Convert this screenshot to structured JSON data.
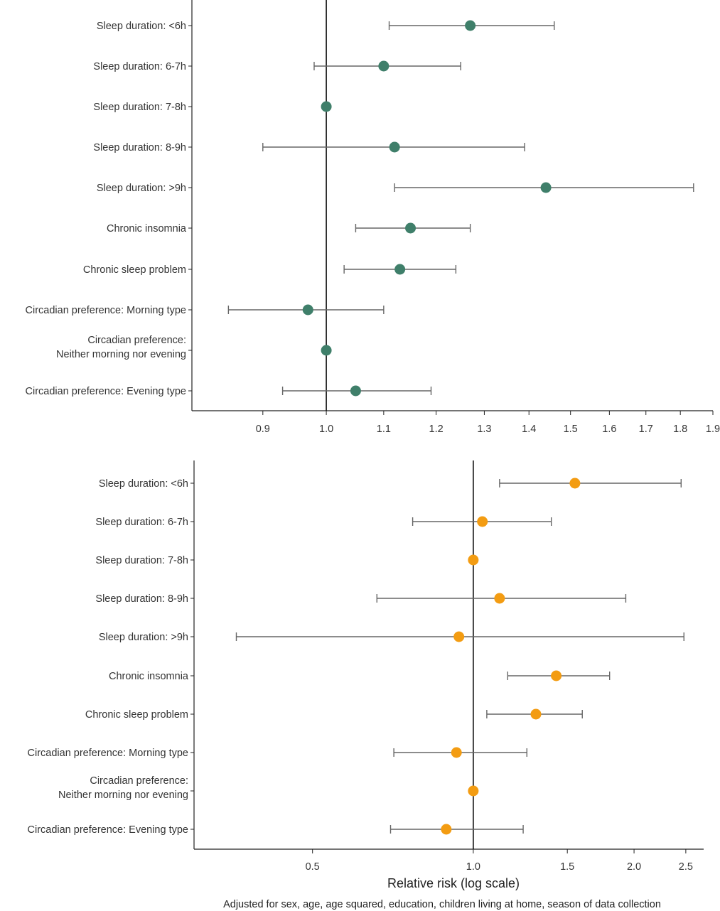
{
  "chart_data": [
    {
      "type": "forest",
      "scale": "log",
      "ticks": [
        "0.9",
        "1.0",
        "1.1",
        "1.2",
        "1.3",
        "1.4",
        "1.5",
        "1.6",
        "1.7",
        "1.8",
        "1.9"
      ],
      "xlim": [
        0.8,
        1.9
      ],
      "reference_line": 1.0,
      "marker_color": "#3f7f6a",
      "rows": [
        {
          "label": "Sleep duration: <6h",
          "estimate": 1.27,
          "lower": 1.11,
          "upper": 1.46
        },
        {
          "label": "Sleep duration: 6-7h",
          "estimate": 1.1,
          "lower": 0.98,
          "upper": 1.25
        },
        {
          "label": "Sleep duration: 7-8h",
          "estimate": 1.0
        },
        {
          "label": "Sleep duration: 8-9h",
          "estimate": 1.12,
          "lower": 0.9,
          "upper": 1.39
        },
        {
          "label": "Sleep duration: >9h",
          "estimate": 1.44,
          "lower": 1.12,
          "upper": 1.84
        },
        {
          "label": "Chronic insomnia",
          "estimate": 1.15,
          "lower": 1.05,
          "upper": 1.27
        },
        {
          "label": "Chronic sleep problem",
          "estimate": 1.13,
          "lower": 1.03,
          "upper": 1.24
        },
        {
          "label": "Circadian preference: Morning type",
          "estimate": 0.97,
          "lower": 0.85,
          "upper": 1.1
        },
        {
          "label": [
            "Circadian preference:",
            "Neither morning nor evening"
          ],
          "estimate": 1.0
        },
        {
          "label": "Circadian preference: Evening type",
          "estimate": 1.05,
          "lower": 0.93,
          "upper": 1.19
        }
      ]
    },
    {
      "type": "forest",
      "scale": "log",
      "ticks": [
        "0.5",
        "1.0",
        "1.5",
        "2.0",
        "2.5"
      ],
      "xlim": [
        0.3,
        2.7
      ],
      "reference_line": 1.0,
      "marker_color": "#f39c12",
      "xlabel": "Relative risk (log scale)",
      "rows": [
        {
          "label": "Sleep duration: <6h",
          "estimate": 1.55,
          "lower": 1.12,
          "upper": 2.45
        },
        {
          "label": "Sleep duration: 6-7h",
          "estimate": 1.04,
          "lower": 0.77,
          "upper": 1.4
        },
        {
          "label": "Sleep duration: 7-8h",
          "estimate": 1.0
        },
        {
          "label": "Sleep duration: 8-9h",
          "estimate": 1.12,
          "lower": 0.66,
          "upper": 1.93
        },
        {
          "label": "Sleep duration: >9h",
          "estimate": 0.94,
          "lower": 0.36,
          "upper": 2.48
        },
        {
          "label": "Chronic insomnia",
          "estimate": 1.43,
          "lower": 1.16,
          "upper": 1.8
        },
        {
          "label": "Chronic sleep problem",
          "estimate": 1.31,
          "lower": 1.06,
          "upper": 1.6
        },
        {
          "label": "Circadian preference: Morning type",
          "estimate": 0.93,
          "lower": 0.71,
          "upper": 1.26
        },
        {
          "label": [
            "Circadian preference:",
            "Neither morning nor evening"
          ],
          "estimate": 1.0
        },
        {
          "label": "Circadian preference: Evening type",
          "estimate": 0.89,
          "lower": 0.7,
          "upper": 1.24
        }
      ]
    }
  ],
  "footnote": "Adjusted for sex, age, age squared, education, children living at home, season of data collection"
}
